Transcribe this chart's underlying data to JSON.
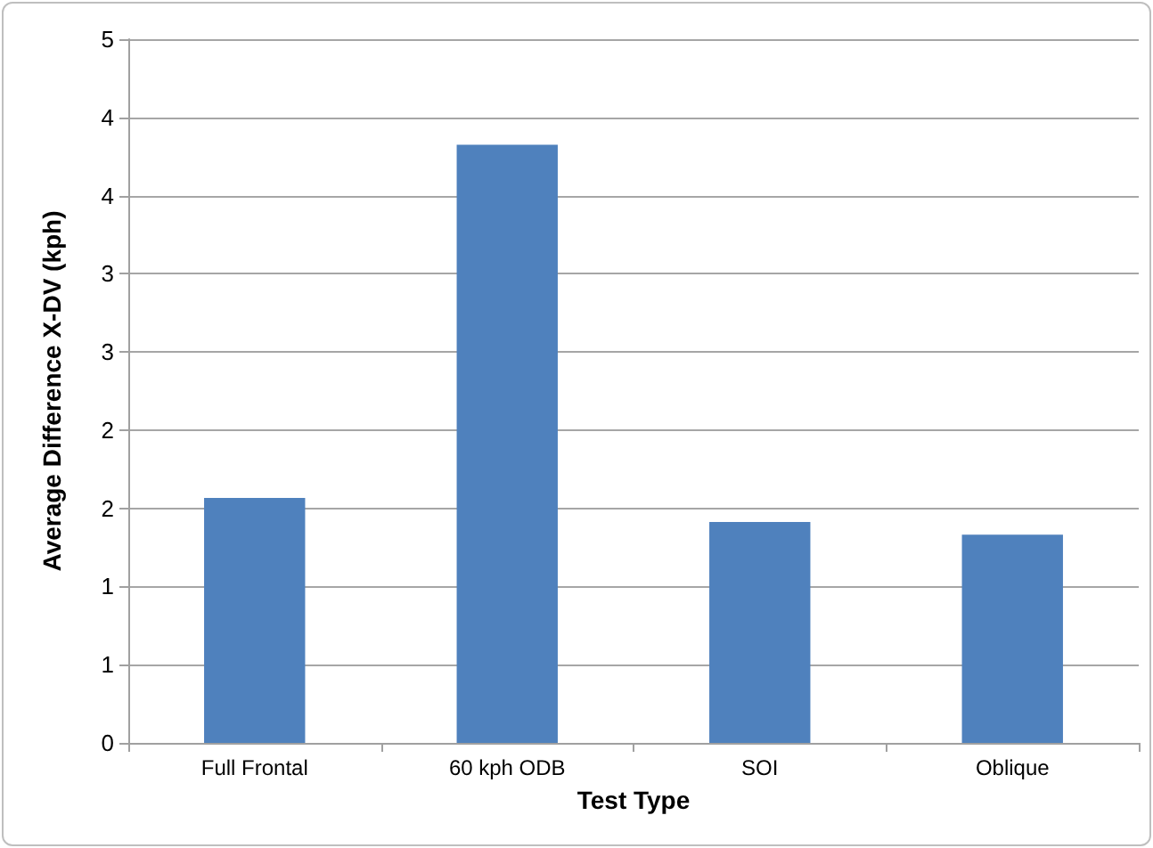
{
  "chart_data": {
    "type": "bar",
    "xlabel": "Test Type",
    "ylabel": "Average Difference X-DV (kph)",
    "categories": [
      "Full Frontal",
      "60 kph ODB",
      "SOI",
      "Oblique"
    ],
    "values": [
      1.74,
      4.25,
      1.57,
      1.48
    ],
    "color": "#4f81bd",
    "ylim": [
      0,
      5
    ],
    "yticks": [
      0,
      {
        "value": 0.5556,
        "label": "1"
      },
      {
        "value": 1.1111,
        "label": "1"
      },
      {
        "value": 1.6667,
        "label": "2"
      },
      {
        "value": 2.2222,
        "label": "2"
      },
      {
        "value": 2.7778,
        "label": "3"
      },
      {
        "value": 3.3333,
        "label": "3"
      },
      {
        "value": 3.8889,
        "label": "4"
      },
      {
        "value": 4.4444,
        "label": "4"
      },
      5
    ],
    "grid": "y"
  }
}
